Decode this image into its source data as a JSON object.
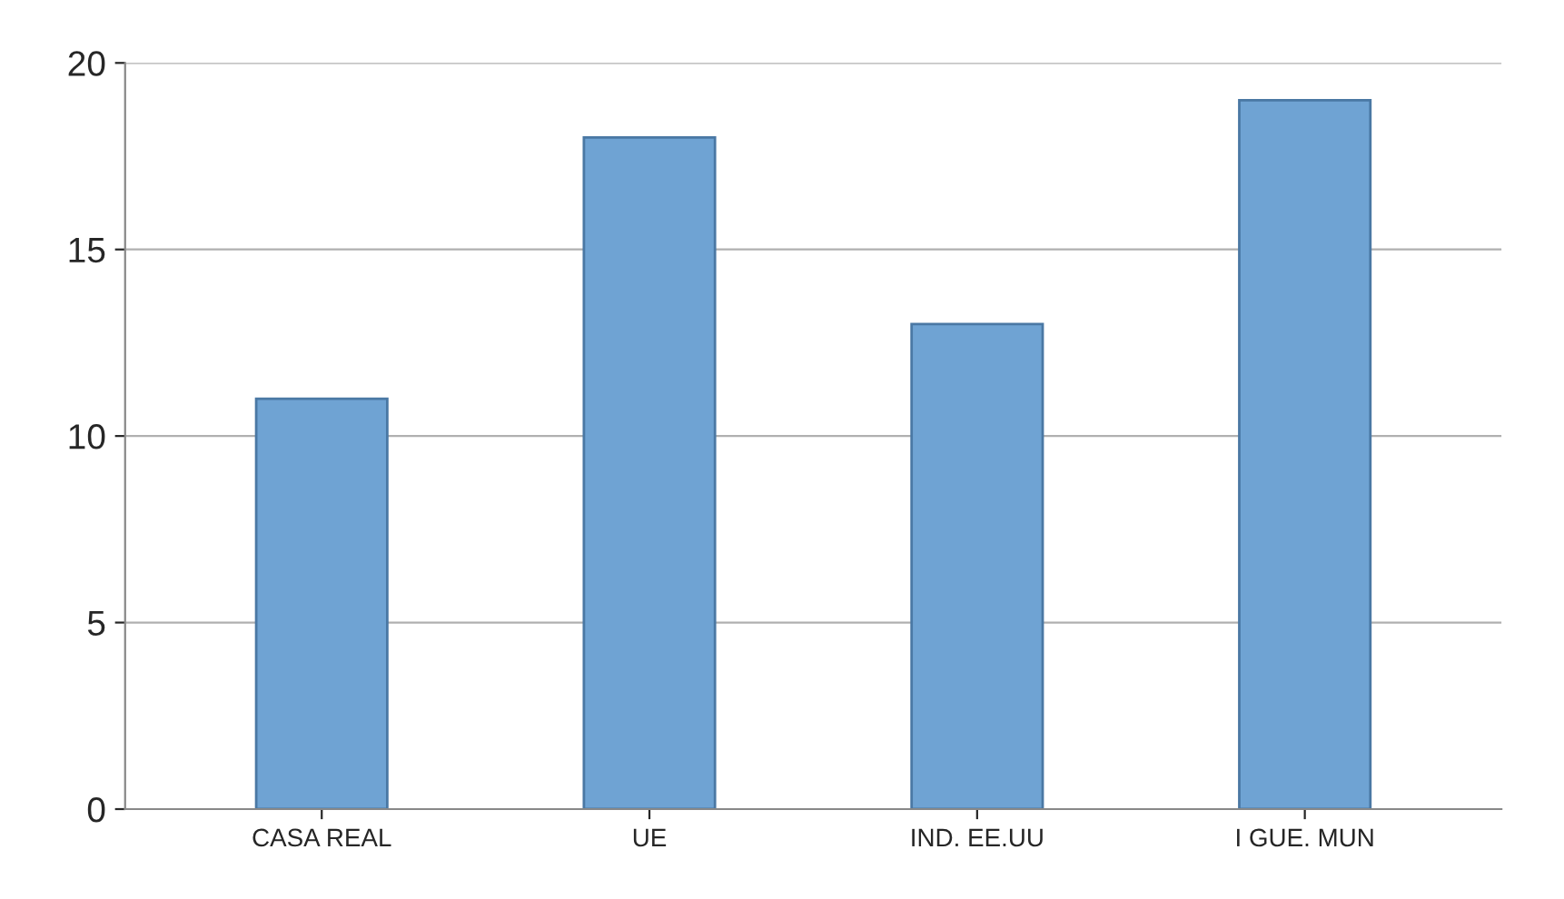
{
  "chart_data": {
    "type": "bar",
    "categories": [
      "CASA REAL",
      "UE",
      "IND. EE.UU",
      "I GUE. MUN"
    ],
    "values": [
      11,
      18,
      13,
      19
    ],
    "color": "#6fa3d3",
    "ylim": [
      0,
      20
    ],
    "yticks": [
      0,
      5,
      10,
      15,
      20
    ],
    "grid": "y"
  }
}
